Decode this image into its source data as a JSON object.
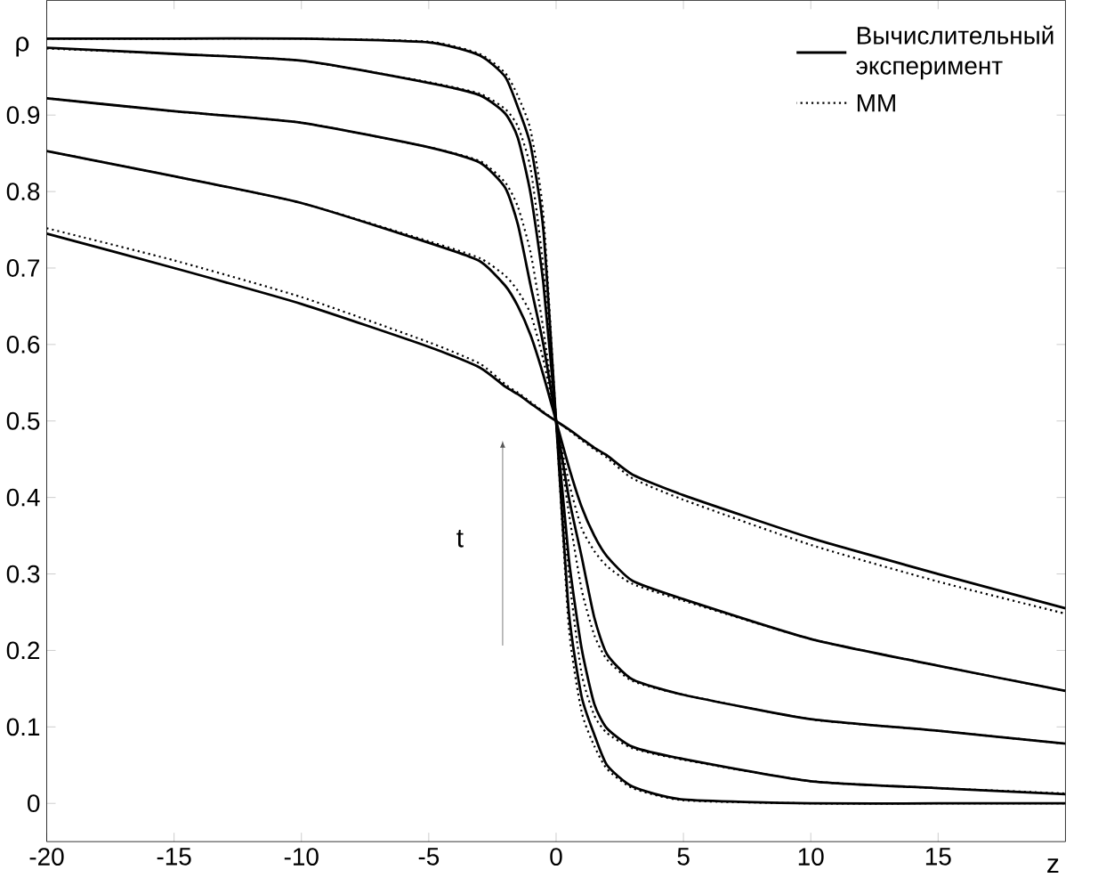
{
  "chart_data": {
    "type": "line",
    "xlabel": "z",
    "ylabel": "ρ",
    "x": [
      -20,
      -15,
      -10,
      -5,
      -3,
      -2,
      -1.5,
      -1,
      -0.5,
      0,
      0.5,
      1,
      1.5,
      2,
      3,
      5,
      10,
      15,
      20
    ],
    "xlim": [
      -20,
      20
    ],
    "ylim": [
      -0.05,
      1.05
    ],
    "xticks": [
      -20,
      -15,
      -10,
      -5,
      0,
      5,
      10,
      15
    ],
    "yticks": [
      0,
      0.1,
      0.2,
      0.3,
      0.4,
      0.5,
      0.6,
      0.7,
      0.8,
      0.9
    ],
    "grid": false,
    "legend": "top right",
    "marker": "none",
    "annotations": [
      "t"
    ],
    "series": [
      {
        "name": "Вычислительный эксперимент",
        "color": "#000000",
        "line_style": "solid",
        "values": [
          0.745,
          0.7,
          0.653,
          0.597,
          0.57,
          0.545,
          0.535,
          0.523,
          0.511,
          0.5,
          0.489,
          0.477,
          0.465,
          0.455,
          0.43,
          0.403,
          0.347,
          0.3,
          0.255
        ]
      },
      {
        "color": "#000000",
        "line_style": "solid",
        "values": [
          0.853,
          0.82,
          0.785,
          0.733,
          0.709,
          0.677,
          0.65,
          0.612,
          0.56,
          0.5,
          0.44,
          0.388,
          0.35,
          0.323,
          0.291,
          0.267,
          0.215,
          0.18,
          0.147
        ]
      },
      {
        "color": "#000000",
        "line_style": "solid",
        "values": [
          0.922,
          0.905,
          0.89,
          0.858,
          0.838,
          0.805,
          0.757,
          0.677,
          0.6,
          0.5,
          0.4,
          0.323,
          0.243,
          0.195,
          0.162,
          0.142,
          0.11,
          0.095,
          0.078
        ]
      },
      {
        "color": "#000000",
        "line_style": "solid",
        "values": [
          0.988,
          0.98,
          0.971,
          0.942,
          0.926,
          0.902,
          0.87,
          0.797,
          0.68,
          0.5,
          0.32,
          0.203,
          0.13,
          0.098,
          0.074,
          0.058,
          0.029,
          0.02,
          0.012
        ]
      },
      {
        "color": "#000000",
        "line_style": "solid",
        "values": [
          1.0,
          1.0,
          1.0,
          0.995,
          0.978,
          0.95,
          0.91,
          0.86,
          0.75,
          0.5,
          0.25,
          0.14,
          0.09,
          0.05,
          0.022,
          0.005,
          0.0,
          0.0,
          0.0
        ]
      },
      {
        "name": "ММ",
        "color": "#000000",
        "line_style": "dotted",
        "values": [
          0.752,
          0.71,
          0.662,
          0.603,
          0.575,
          0.548,
          0.537,
          0.525,
          0.512,
          0.5,
          0.488,
          0.475,
          0.463,
          0.452,
          0.425,
          0.397,
          0.338,
          0.29,
          0.248
        ]
      },
      {
        "color": "#000000",
        "line_style": "dotted",
        "values": [
          0.853,
          0.82,
          0.785,
          0.735,
          0.713,
          0.69,
          0.67,
          0.64,
          0.58,
          0.5,
          0.42,
          0.36,
          0.33,
          0.31,
          0.287,
          0.265,
          0.215,
          0.18,
          0.147
        ]
      },
      {
        "color": "#000000",
        "line_style": "dotted",
        "values": [
          0.922,
          0.905,
          0.89,
          0.858,
          0.84,
          0.812,
          0.78,
          0.72,
          0.62,
          0.5,
          0.38,
          0.28,
          0.22,
          0.188,
          0.16,
          0.142,
          0.11,
          0.095,
          0.078
        ]
      },
      {
        "color": "#000000",
        "line_style": "dotted",
        "values": [
          0.987,
          0.98,
          0.971,
          0.943,
          0.928,
          0.908,
          0.885,
          0.83,
          0.7,
          0.5,
          0.3,
          0.17,
          0.115,
          0.092,
          0.072,
          0.057,
          0.029,
          0.02,
          0.013
        ]
      },
      {
        "color": "#000000",
        "line_style": "dotted",
        "values": [
          1.0,
          1.0,
          1.0,
          0.996,
          0.98,
          0.955,
          0.925,
          0.88,
          0.77,
          0.5,
          0.23,
          0.12,
          0.075,
          0.045,
          0.02,
          0.004,
          0.0,
          0.0,
          0.0
        ]
      }
    ]
  }
}
